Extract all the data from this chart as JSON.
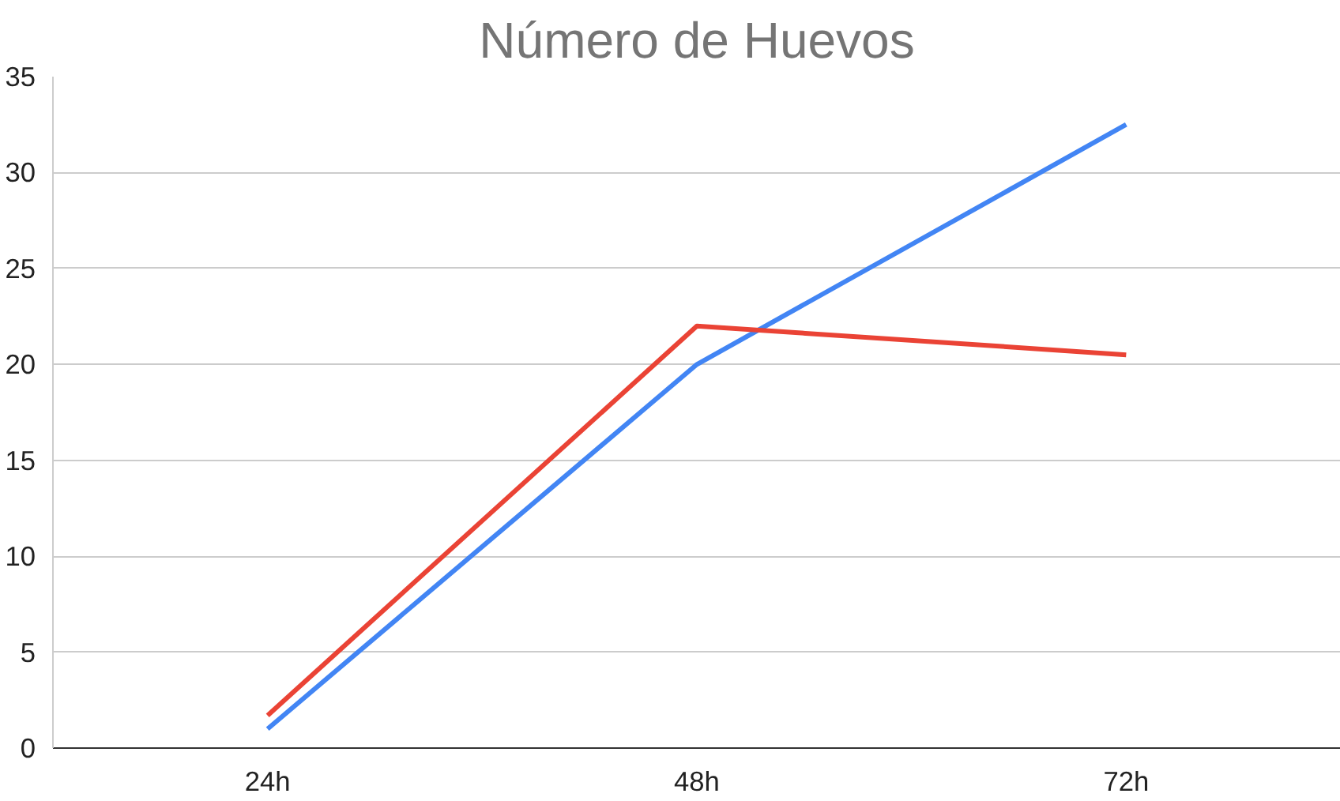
{
  "chart_data": {
    "type": "line",
    "title": "Número de Huevos",
    "categories": [
      "24h",
      "48h",
      "72h"
    ],
    "series": [
      {
        "color": "#4285f4",
        "values": [
          1,
          20,
          32.5
        ]
      },
      {
        "color": "#ea4335",
        "values": [
          1.7,
          22,
          20.5
        ]
      }
    ],
    "ylim": [
      0,
      35
    ],
    "yticks": [
      0,
      5,
      10,
      15,
      20,
      25,
      30,
      35
    ],
    "grid": "y",
    "marker": "none",
    "line_style": "solid"
  }
}
